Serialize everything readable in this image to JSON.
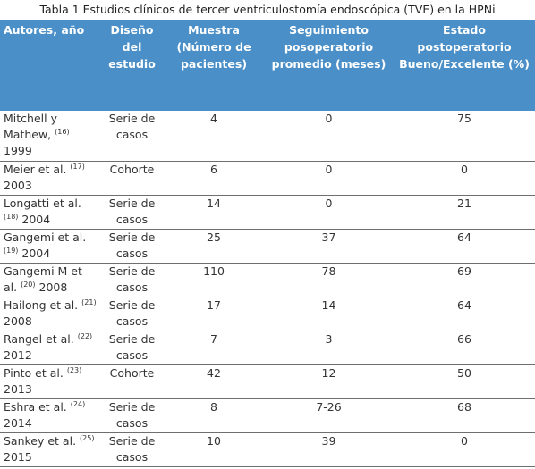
{
  "caption": "Tabla 1 Estudios clínicos de tercer ventriculostomía endoscópica (TVE) en la HPNi",
  "headers": {
    "author": "Autores, año",
    "design": "Diseño del estudio",
    "sample": "Muestra (Número de pacientes)",
    "followup": "Seguimiento posoperatorio promedio (meses)",
    "outcome": "Estado postoperatorio Bueno/Excelente (%)"
  },
  "rows": [
    {
      "author_a": "Mitchell y Mathew,",
      "ref": "(16)",
      "author_b": "1999",
      "design": "Serie de casos",
      "sample": "4",
      "followup": "0",
      "outcome": "75"
    },
    {
      "author_a": "Meier et al.",
      "ref": "(17)",
      "author_b": "2003",
      "design": "Cohorte",
      "sample": "6",
      "followup": "0",
      "outcome": "0"
    },
    {
      "author_a": "Longatti et al.",
      "ref": "(18)",
      "author_b": "2004",
      "design": "Serie de casos",
      "sample": "14",
      "followup": "0",
      "outcome": "21"
    },
    {
      "author_a": "Gangemi et al.",
      "ref": "(19)",
      "author_b": "2004",
      "design": "Serie de casos",
      "sample": "25",
      "followup": "37",
      "outcome": "64"
    },
    {
      "author_a": "Gangemi M et al.",
      "ref": "(20)",
      "author_b": "2008",
      "design": "Serie de casos",
      "sample": "110",
      "followup": "78",
      "outcome": "69"
    },
    {
      "author_a": "Hailong et al.",
      "ref": "(21)",
      "author_b": "2008",
      "design": "Serie de casos",
      "sample": "17",
      "followup": "14",
      "outcome": "64"
    },
    {
      "author_a": "Rangel et al.",
      "ref": "(22)",
      "author_b": "2012",
      "design": "Serie de casos",
      "sample": "7",
      "followup": "3",
      "outcome": "66"
    },
    {
      "author_a": "Pinto et al.",
      "ref": "(23)",
      "author_b": "2013",
      "design": "Cohorte",
      "sample": "42",
      "followup": "12",
      "outcome": "50"
    },
    {
      "author_a": "Eshra et al.",
      "ref": "(24)",
      "author_b": "2014",
      "design": "Serie de casos",
      "sample": "8",
      "followup": "7-26",
      "outcome": "68"
    },
    {
      "author_a": "Sankey et al.",
      "ref": "(25)",
      "author_b": "2015",
      "design": "Serie de casos",
      "sample": "10",
      "followup": "39",
      "outcome": "0"
    }
  ]
}
